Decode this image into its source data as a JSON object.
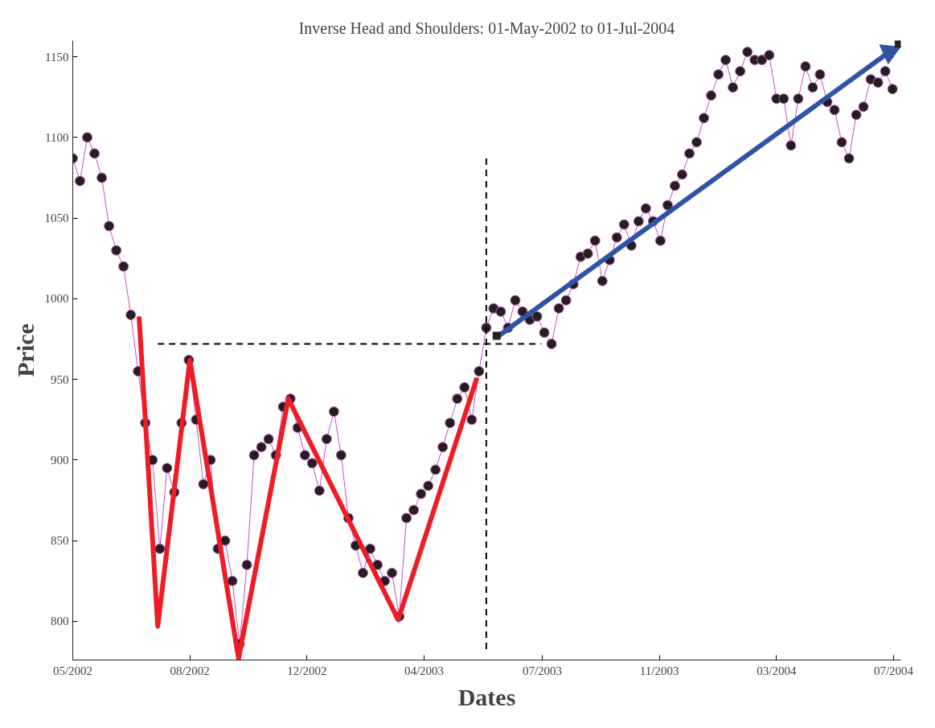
{
  "chart_data": {
    "type": "line",
    "title": "Inverse Head and Shoulders: 01-May-2002 to 01-Jul-2004",
    "xlabel": "Dates",
    "ylabel": "Price",
    "xlim": [
      "2002-05-01",
      "2004-07-08"
    ],
    "ylim": [
      776,
      1160
    ],
    "xticks": [
      {
        "value": "2002-05-01",
        "label": "05/2002"
      },
      {
        "value": "2002-08-22",
        "label": "08/2002"
      },
      {
        "value": "2002-12-13",
        "label": "12/2002"
      },
      {
        "value": "2003-04-05",
        "label": "04/2003"
      },
      {
        "value": "2003-07-28",
        "label": "07/2003"
      },
      {
        "value": "2003-11-18",
        "label": "11/2003"
      },
      {
        "value": "2004-03-10",
        "label": "03/2004"
      },
      {
        "value": "2004-07-01",
        "label": "07/2004"
      }
    ],
    "yticks": [
      800,
      850,
      900,
      950,
      1000,
      1050,
      1100,
      1150
    ],
    "grid": false,
    "series": [
      {
        "marker": "circle",
        "color": "#c052bd",
        "x": [
          "2002-05-01",
          "2002-05-08",
          "2002-05-15",
          "2002-05-22",
          "2002-05-29",
          "2002-06-05",
          "2002-06-12",
          "2002-06-19",
          "2002-06-26",
          "2002-07-03",
          "2002-07-10",
          "2002-07-17",
          "2002-07-24",
          "2002-07-31",
          "2002-08-07",
          "2002-08-14",
          "2002-08-21",
          "2002-08-28",
          "2002-09-04",
          "2002-09-11",
          "2002-09-18",
          "2002-09-25",
          "2002-10-02",
          "2002-10-09",
          "2002-10-16",
          "2002-10-23",
          "2002-10-30",
          "2002-11-06",
          "2002-11-13",
          "2002-11-20",
          "2002-11-27",
          "2002-12-04",
          "2002-12-11",
          "2002-12-18",
          "2002-12-25",
          "2003-01-01",
          "2003-01-08",
          "2003-01-15",
          "2003-01-22",
          "2003-01-29",
          "2003-02-05",
          "2003-02-12",
          "2003-02-19",
          "2003-02-26",
          "2003-03-05",
          "2003-03-12",
          "2003-03-19",
          "2003-03-26",
          "2003-04-02",
          "2003-04-09",
          "2003-04-16",
          "2003-04-23",
          "2003-04-30",
          "2003-05-07",
          "2003-05-14",
          "2003-05-21",
          "2003-05-28",
          "2003-06-04",
          "2003-06-11",
          "2003-06-18",
          "2003-06-25",
          "2003-07-02",
          "2003-07-09",
          "2003-07-16",
          "2003-07-23",
          "2003-07-30",
          "2003-08-06",
          "2003-08-13",
          "2003-08-20",
          "2003-08-27",
          "2003-09-03",
          "2003-09-10",
          "2003-09-17",
          "2003-09-24",
          "2003-10-01",
          "2003-10-08",
          "2003-10-15",
          "2003-10-22",
          "2003-10-29",
          "2003-11-05",
          "2003-11-12",
          "2003-11-19",
          "2003-11-26",
          "2003-12-03",
          "2003-12-10",
          "2003-12-17",
          "2003-12-24",
          "2003-12-31",
          "2004-01-07",
          "2004-01-14",
          "2004-01-21",
          "2004-01-28",
          "2004-02-04",
          "2004-02-11",
          "2004-02-18",
          "2004-02-25",
          "2004-03-03",
          "2004-03-10",
          "2004-03-17",
          "2004-03-24",
          "2004-03-31",
          "2004-04-07",
          "2004-04-14",
          "2004-04-21",
          "2004-04-28",
          "2004-05-05",
          "2004-05-12",
          "2004-05-19",
          "2004-05-26",
          "2004-06-02",
          "2004-06-09",
          "2004-06-16",
          "2004-06-23",
          "2004-06-30"
        ],
        "values": [
          1087,
          1073,
          1100,
          1090,
          1075,
          1045,
          1030,
          1020,
          990,
          955,
          923,
          900,
          845,
          895,
          880,
          923,
          962,
          925,
          885,
          900,
          845,
          850,
          825,
          786,
          835,
          903,
          908,
          913,
          903,
          933,
          938,
          920,
          903,
          898,
          881,
          913,
          930,
          903,
          864,
          847,
          830,
          845,
          835,
          825,
          830,
          803,
          864,
          869,
          879,
          884,
          894,
          908,
          923,
          938,
          945,
          925,
          955,
          982,
          994,
          992,
          982,
          999,
          992,
          987,
          989,
          979,
          972,
          994,
          999,
          1009,
          1026,
          1028,
          1036,
          1011,
          1024,
          1038,
          1046,
          1033,
          1048,
          1056,
          1048,
          1036,
          1058,
          1070,
          1077,
          1090,
          1097,
          1112,
          1126,
          1139,
          1148,
          1131,
          1141,
          1153,
          1148,
          1148,
          1151,
          1124,
          1124,
          1095,
          1124,
          1144,
          1131,
          1139,
          1122,
          1117,
          1097,
          1087,
          1114,
          1119,
          1136,
          1134,
          1141,
          1130
        ]
      },
      {
        "color": "#ee1c24",
        "x": [
          "2002-07-04",
          "2002-07-22",
          "2002-08-22",
          "2002-10-08",
          "2002-11-25",
          "2003-03-11",
          "2003-05-26"
        ],
        "values": [
          989,
          797,
          962,
          777,
          938,
          801,
          951
        ]
      },
      {
        "color": "#000000",
        "line_style": "dashed",
        "x": [
          "2002-07-22",
          "2003-07-27"
        ],
        "values": [
          972,
          972
        ]
      },
      {
        "color": "#000000",
        "line_style": "dashed",
        "x": [
          "2003-06-04",
          "2003-06-04"
        ],
        "values": [
          1087,
          782
        ]
      },
      {
        "color": "#2e55a5",
        "marker": "triangle",
        "x": [
          "2003-06-16",
          "2004-06-27"
        ],
        "values": [
          977,
          1153
        ]
      },
      {
        "type": "scatter",
        "marker": "square",
        "color": "#231f20",
        "x": [
          "2003-06-14",
          "2004-07-06"
        ],
        "values": [
          977,
          1158
        ]
      }
    ]
  }
}
